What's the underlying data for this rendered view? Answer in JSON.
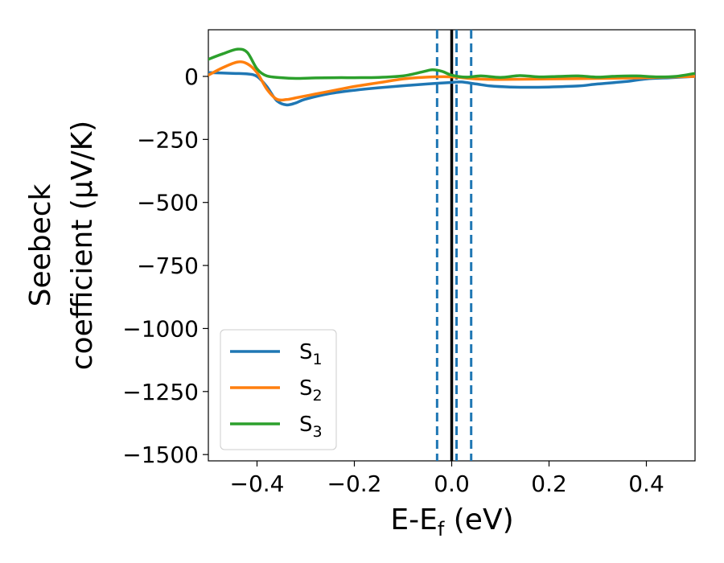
{
  "chart_data": {
    "type": "line",
    "xlabel_main": "E-E",
    "xlabel_sub": "f",
    "xlabel_unit": " (eV)",
    "ylabel_line1": "Seebeck",
    "ylabel_line2": "coefficient  (μV/K)",
    "xlim": [
      -0.5,
      0.5
    ],
    "ylim": [
      -1525,
      185
    ],
    "xticks": [
      -0.4,
      -0.2,
      0.0,
      0.2,
      0.4
    ],
    "xtick_labels": [
      "−0.4",
      "−0.2",
      "0.0",
      "0.2",
      "0.4"
    ],
    "yticks": [
      0,
      -250,
      -500,
      -750,
      -1000,
      -1250,
      -1500
    ],
    "ytick_labels": [
      "0",
      "−250",
      "−500",
      "−750",
      "−1000",
      "−1250",
      "−1500"
    ],
    "grid": false,
    "legend_position": "lower-left",
    "vlines": [
      {
        "x": 0.0,
        "style": "solid",
        "color": "#000000"
      },
      {
        "x": -0.03,
        "style": "dashed",
        "color": "#1f77b4"
      },
      {
        "x": 0.01,
        "style": "dashed",
        "color": "#1f77b4"
      },
      {
        "x": 0.04,
        "style": "dashed",
        "color": "#1f77b4"
      }
    ],
    "series": [
      {
        "name": "S",
        "sub": "1",
        "color": "#1f77b4",
        "points": [
          [
            -0.5,
            15
          ],
          [
            -0.45,
            12
          ],
          [
            -0.42,
            10
          ],
          [
            -0.4,
            0
          ],
          [
            -0.38,
            -40
          ],
          [
            -0.36,
            -95
          ],
          [
            -0.34,
            -113
          ],
          [
            -0.32,
            -105
          ],
          [
            -0.3,
            -90
          ],
          [
            -0.25,
            -68
          ],
          [
            -0.2,
            -55
          ],
          [
            -0.15,
            -45
          ],
          [
            -0.1,
            -37
          ],
          [
            -0.05,
            -30
          ],
          [
            0.0,
            -24
          ],
          [
            0.02,
            -22
          ],
          [
            0.05,
            -30
          ],
          [
            0.08,
            -38
          ],
          [
            0.12,
            -42
          ],
          [
            0.16,
            -43
          ],
          [
            0.2,
            -42
          ],
          [
            0.26,
            -38
          ],
          [
            0.3,
            -30
          ],
          [
            0.36,
            -20
          ],
          [
            0.4,
            -10
          ],
          [
            0.45,
            -5
          ],
          [
            0.5,
            0
          ]
        ]
      },
      {
        "name": "S",
        "sub": "2",
        "color": "#ff7f0e",
        "points": [
          [
            -0.5,
            5
          ],
          [
            -0.47,
            35
          ],
          [
            -0.44,
            57
          ],
          [
            -0.42,
            50
          ],
          [
            -0.4,
            15
          ],
          [
            -0.38,
            -50
          ],
          [
            -0.36,
            -90
          ],
          [
            -0.34,
            -92
          ],
          [
            -0.32,
            -85
          ],
          [
            -0.28,
            -70
          ],
          [
            -0.24,
            -55
          ],
          [
            -0.2,
            -40
          ],
          [
            -0.15,
            -25
          ],
          [
            -0.1,
            -10
          ],
          [
            -0.05,
            -3
          ],
          [
            0.0,
            -2
          ],
          [
            0.05,
            -10
          ],
          [
            0.1,
            -12
          ],
          [
            0.2,
            -10
          ],
          [
            0.3,
            -8
          ],
          [
            0.4,
            -5
          ],
          [
            0.5,
            0
          ]
        ]
      },
      {
        "name": "S",
        "sub": "3",
        "color": "#2ca02c",
        "points": [
          [
            -0.5,
            68
          ],
          [
            -0.47,
            90
          ],
          [
            -0.44,
            108
          ],
          [
            -0.42,
            95
          ],
          [
            -0.4,
            30
          ],
          [
            -0.38,
            2
          ],
          [
            -0.35,
            -5
          ],
          [
            -0.32,
            -8
          ],
          [
            -0.28,
            -6
          ],
          [
            -0.24,
            -5
          ],
          [
            -0.2,
            -5
          ],
          [
            -0.15,
            -4
          ],
          [
            -0.1,
            2
          ],
          [
            -0.06,
            18
          ],
          [
            -0.04,
            26
          ],
          [
            -0.02,
            20
          ],
          [
            0.0,
            5
          ],
          [
            0.03,
            -3
          ],
          [
            0.06,
            2
          ],
          [
            0.1,
            -4
          ],
          [
            0.14,
            3
          ],
          [
            0.18,
            -2
          ],
          [
            0.22,
            0
          ],
          [
            0.26,
            2
          ],
          [
            0.3,
            -3
          ],
          [
            0.34,
            1
          ],
          [
            0.38,
            2
          ],
          [
            0.42,
            -2
          ],
          [
            0.46,
            0
          ],
          [
            0.5,
            12
          ]
        ]
      }
    ]
  }
}
